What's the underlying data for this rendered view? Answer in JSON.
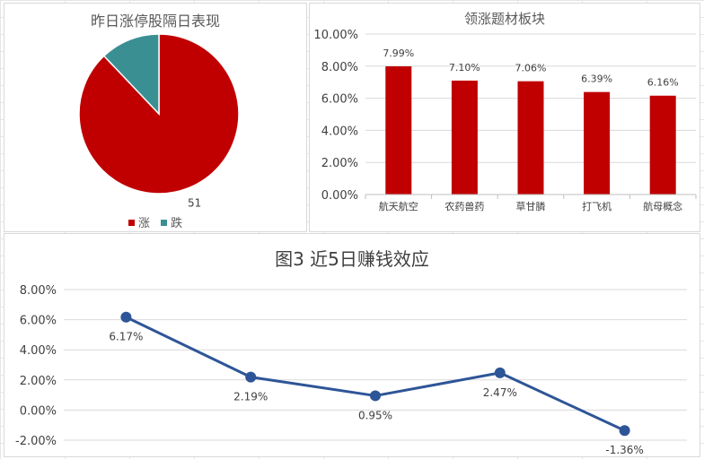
{
  "colors": {
    "rise": "#c00000",
    "fall": "#3a8f93",
    "line": "#2e5597",
    "grid": "#d9d9d9",
    "axis": "#bfbfbf"
  },
  "chart_data": [
    {
      "type": "pie",
      "title": "昨日涨停股隔日表现",
      "categories": [
        "涨",
        "跌"
      ],
      "values": [
        51,
        7
      ],
      "data_labels": [
        "51",
        ""
      ],
      "legend": "bottom",
      "legend_items": [
        {
          "name": "涨",
          "color": "#c00000"
        },
        {
          "name": "跌",
          "color": "#3a8f93"
        }
      ]
    },
    {
      "type": "bar",
      "title": "领涨题材板块",
      "categories": [
        "航天航空",
        "农药兽药",
        "草甘膦",
        "打飞机",
        "航母概念"
      ],
      "values": [
        7.99,
        7.1,
        7.06,
        6.39,
        6.16
      ],
      "data_labels": [
        "7.99%",
        "7.10%",
        "7.06%",
        "6.39%",
        "6.16%"
      ],
      "ylim": [
        0,
        10
      ],
      "yticks": [
        0,
        2,
        4,
        6,
        8,
        10
      ],
      "ytick_labels": [
        "0.00%",
        "2.00%",
        "4.00%",
        "6.00%",
        "8.00%",
        "10.00%"
      ],
      "grid": true,
      "bar_color": "#c00000"
    },
    {
      "type": "line",
      "title": "图3 近5日赚钱效应",
      "values": [
        6.17,
        2.19,
        0.95,
        2.47,
        -1.36
      ],
      "data_labels": [
        "6.17%",
        "2.19%",
        "0.95%",
        "2.47%",
        "-1.36%"
      ],
      "ylim": [
        -2,
        8
      ],
      "yticks": [
        -2,
        0,
        2,
        4,
        6,
        8
      ],
      "ytick_labels": [
        "-2.00%",
        "0.00%",
        "2.00%",
        "4.00%",
        "6.00%",
        "8.00%"
      ],
      "grid": true,
      "line_color": "#2e5597"
    }
  ]
}
